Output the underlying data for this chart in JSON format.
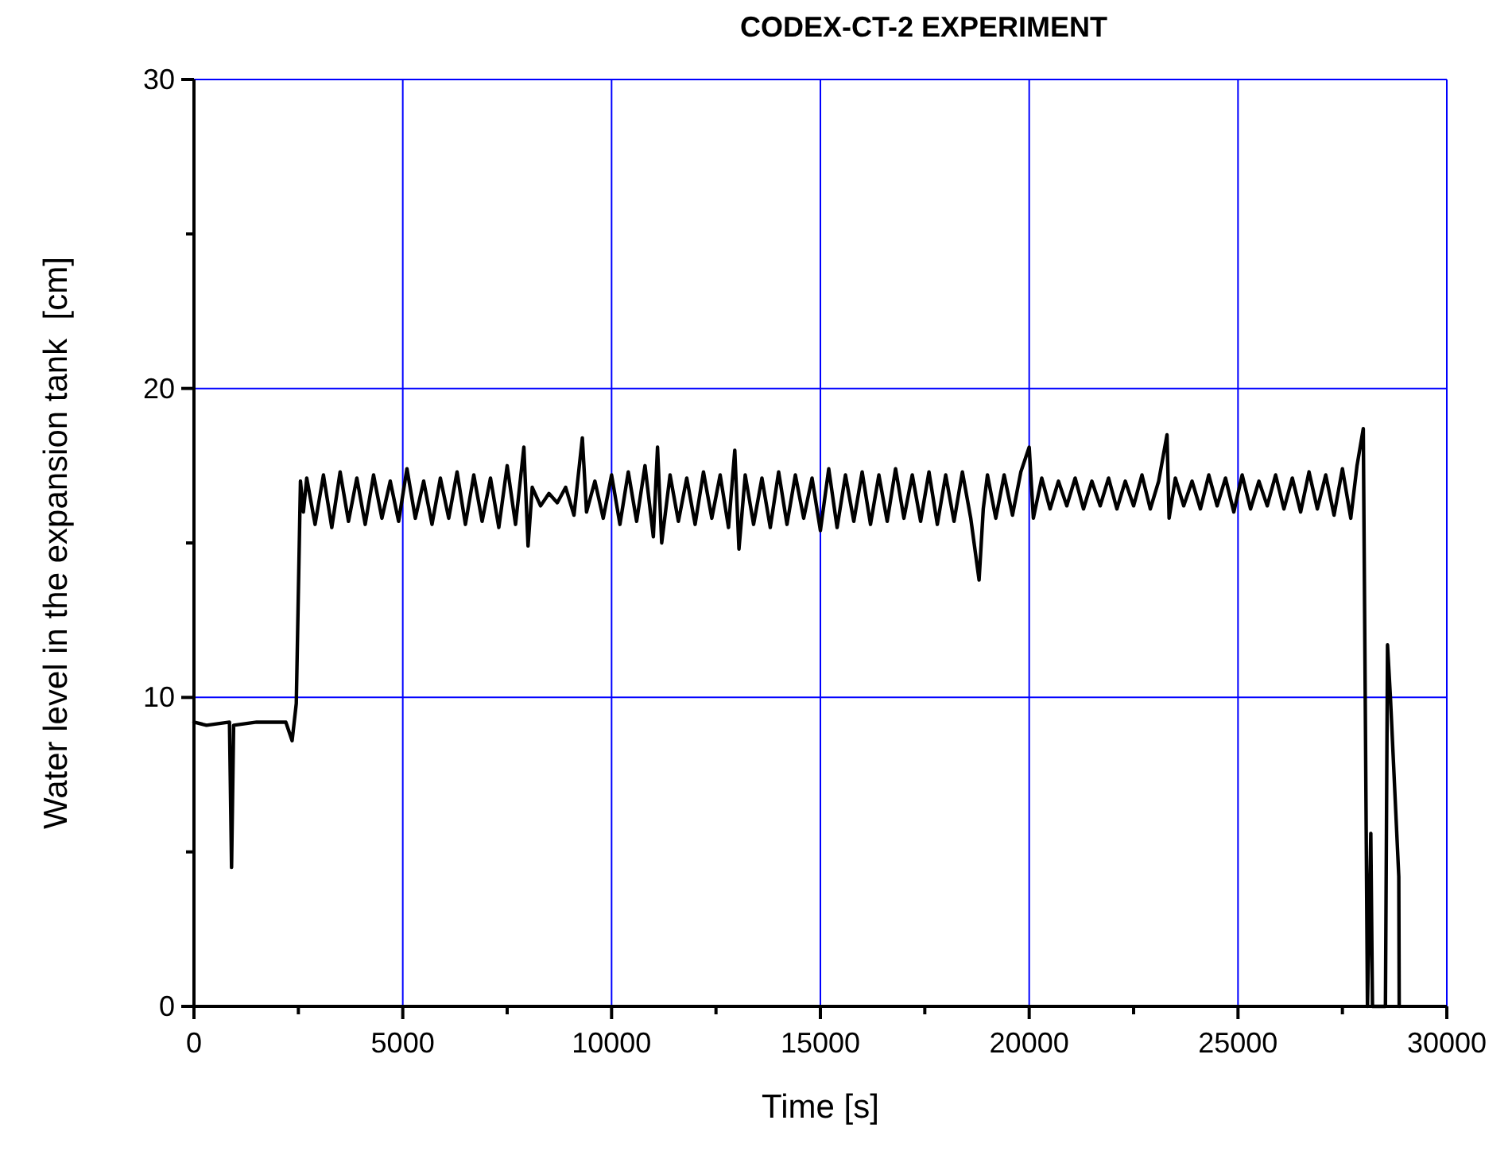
{
  "chart_data": {
    "type": "line",
    "title": "CODEX-CT-2 EXPERIMENT",
    "xlabel": "Time [s]",
    "ylabel": "Water level in the expansion tank  [cm]",
    "xlim": [
      0,
      30000
    ],
    "ylim": [
      0,
      30
    ],
    "xticks": [
      0,
      {
        "value": 2500,
        "label": null
      },
      5000,
      {
        "value": 7500,
        "label": null
      },
      10000,
      {
        "value": 12500,
        "label": null
      },
      15000,
      {
        "value": 17500,
        "label": null
      },
      20000,
      {
        "value": 22500,
        "label": null
      },
      25000,
      {
        "value": 27500,
        "label": null
      },
      30000
    ],
    "yticks": [
      0,
      {
        "value": 5,
        "label": null
      },
      10,
      {
        "value": 15,
        "label": null
      },
      20,
      {
        "value": 25,
        "label": null
      },
      30
    ],
    "grid": true,
    "marker": "none",
    "line_style": "solid",
    "series": [
      {
        "color": "#000000",
        "x": [
          0,
          300,
          850,
          900,
          950,
          1500,
          2200,
          2350,
          2450,
          2550,
          2620,
          2700,
          2900,
          3100,
          3300,
          3500,
          3700,
          3900,
          4100,
          4300,
          4500,
          4700,
          4900,
          5100,
          5300,
          5500,
          5700,
          5900,
          6100,
          6300,
          6500,
          6700,
          6900,
          7100,
          7300,
          7500,
          7700,
          7900,
          8000,
          8100,
          8300,
          8500,
          8700,
          8900,
          9100,
          9300,
          9400,
          9600,
          9800,
          10000,
          10200,
          10400,
          10600,
          10800,
          11000,
          11100,
          11200,
          11400,
          11600,
          11800,
          12000,
          12200,
          12400,
          12600,
          12800,
          12950,
          13050,
          13200,
          13400,
          13600,
          13800,
          14000,
          14200,
          14400,
          14600,
          14800,
          15000,
          15200,
          15400,
          15600,
          15800,
          16000,
          16200,
          16400,
          16600,
          16800,
          17000,
          17200,
          17400,
          17600,
          17800,
          18000,
          18200,
          18400,
          18600,
          18800,
          18900,
          19000,
          19200,
          19400,
          19600,
          19800,
          20000,
          20100,
          20300,
          20500,
          20700,
          20900,
          21100,
          21300,
          21500,
          21700,
          21900,
          22100,
          22300,
          22500,
          22700,
          22900,
          23100,
          23300,
          23350,
          23500,
          23700,
          23900,
          24100,
          24300,
          24500,
          24700,
          24900,
          25100,
          25300,
          25500,
          25700,
          25900,
          26100,
          26300,
          26500,
          26700,
          26900,
          27100,
          27300,
          27500,
          27700,
          27850,
          28000,
          28100,
          28180,
          28220,
          28530,
          28580,
          28650,
          28850,
          28860
        ],
        "values": [
          9.2,
          9.1,
          9.2,
          4.5,
          9.1,
          9.2,
          9.2,
          8.6,
          9.8,
          17.0,
          16.0,
          17.1,
          15.6,
          17.2,
          15.5,
          17.3,
          15.7,
          17.1,
          15.6,
          17.2,
          15.8,
          17.0,
          15.7,
          17.4,
          15.8,
          17.0,
          15.6,
          17.1,
          15.8,
          17.3,
          15.6,
          17.2,
          15.7,
          17.1,
          15.5,
          17.5,
          15.6,
          18.1,
          14.9,
          16.8,
          16.2,
          16.6,
          16.3,
          16.8,
          15.9,
          18.4,
          16.0,
          17.0,
          15.8,
          17.2,
          15.6,
          17.3,
          15.7,
          17.5,
          15.2,
          18.1,
          15.0,
          17.2,
          15.7,
          17.1,
          15.6,
          17.3,
          15.8,
          17.2,
          15.5,
          18.0,
          14.8,
          17.2,
          15.6,
          17.1,
          15.5,
          17.3,
          15.6,
          17.2,
          15.8,
          17.1,
          15.4,
          17.4,
          15.5,
          17.2,
          15.7,
          17.3,
          15.6,
          17.2,
          15.7,
          17.4,
          15.8,
          17.2,
          15.7,
          17.3,
          15.6,
          17.2,
          15.7,
          17.3,
          15.8,
          13.8,
          16.1,
          17.2,
          15.8,
          17.2,
          15.9,
          17.3,
          18.1,
          15.8,
          17.1,
          16.1,
          17.0,
          16.2,
          17.1,
          16.1,
          17.0,
          16.2,
          17.1,
          16.1,
          17.0,
          16.2,
          17.2,
          16.1,
          17.0,
          18.5,
          15.8,
          17.1,
          16.2,
          17.0,
          16.1,
          17.2,
          16.2,
          17.1,
          16.0,
          17.2,
          16.1,
          17.0,
          16.2,
          17.2,
          16.1,
          17.1,
          16.0,
          17.3,
          16.1,
          17.2,
          15.9,
          17.4,
          15.8,
          17.5,
          18.7,
          0,
          5.6,
          0,
          0,
          11.7,
          10.0,
          4.2,
          0
        ]
      }
    ]
  }
}
